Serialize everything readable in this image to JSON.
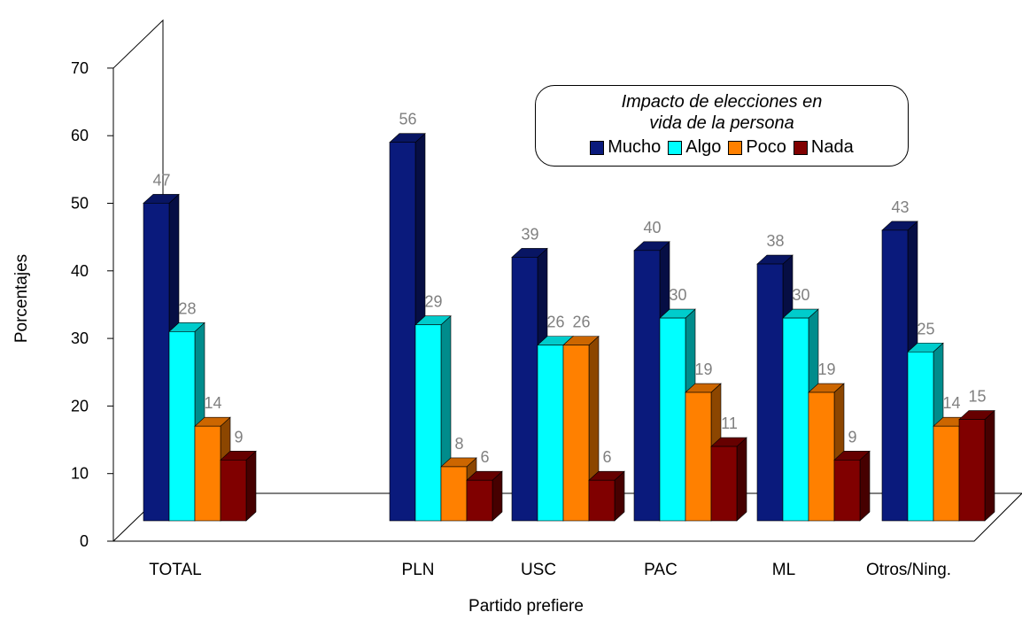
{
  "chart_data": {
    "type": "bar",
    "title": "",
    "xlabel": "Partido prefiere",
    "ylabel": "Porcentajes",
    "ylim": [
      0,
      70
    ],
    "yticks": [
      "0",
      "10",
      "20",
      "30",
      "40",
      "50",
      "60",
      "70"
    ],
    "categories": [
      "TOTAL",
      "PLN",
      "USC",
      "PAC",
      "ML",
      "Otros/Ning."
    ],
    "legend": {
      "title_line1": "Impacto  de elecciones en",
      "title_line2": "vida de la persona",
      "position": "top-right"
    },
    "series": [
      {
        "name": "Mucho",
        "color": "#0a1a7c",
        "values": [
          47,
          56,
          39,
          40,
          38,
          43
        ]
      },
      {
        "name": "Algo",
        "color": "#00ffff",
        "values": [
          28,
          29,
          26,
          30,
          30,
          25
        ]
      },
      {
        "name": "Poco",
        "color": "#ff8000",
        "values": [
          14,
          8,
          26,
          19,
          19,
          14
        ]
      },
      {
        "name": "Nada",
        "color": "#800000",
        "values": [
          9,
          6,
          6,
          11,
          9,
          15
        ]
      }
    ]
  }
}
